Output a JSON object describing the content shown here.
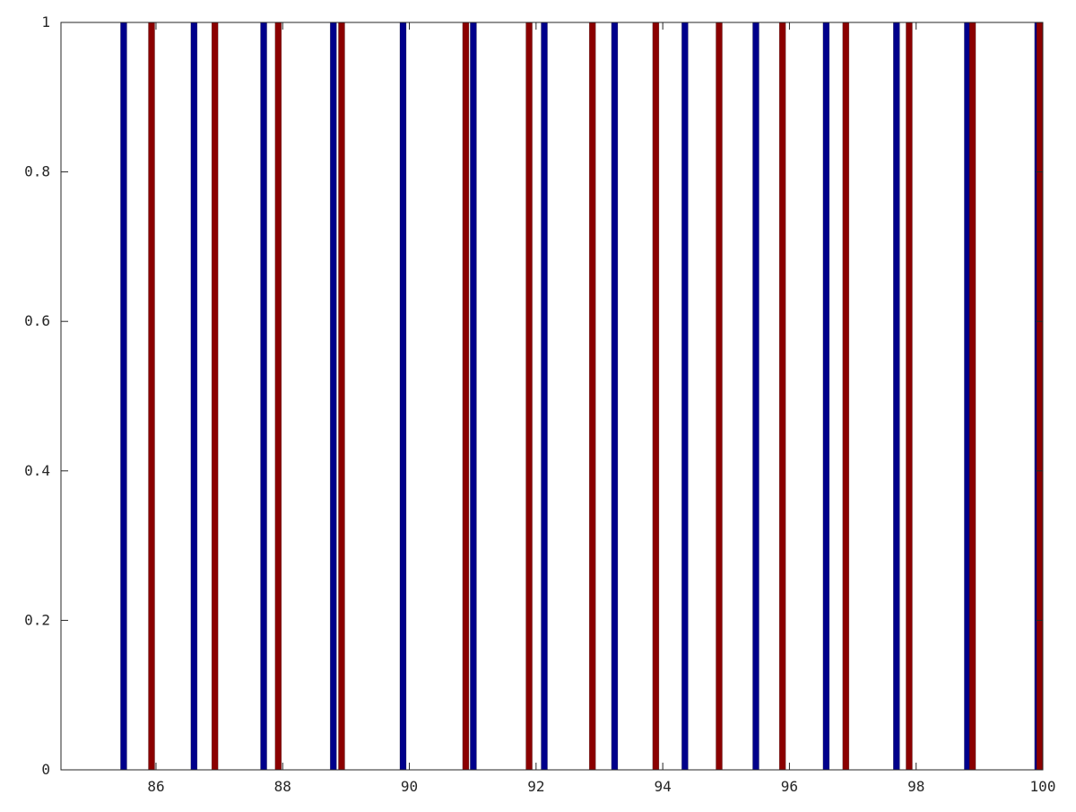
{
  "chart_data": {
    "type": "bar",
    "title": "",
    "xlabel": "",
    "ylabel": "",
    "xlim": [
      84.5,
      100
    ],
    "ylim": [
      0,
      1
    ],
    "x_ticks": [
      86,
      88,
      90,
      92,
      94,
      96,
      98,
      100
    ],
    "x_tick_labels": [
      "86",
      "88",
      "90",
      "92",
      "94",
      "96",
      "98",
      "100"
    ],
    "y_ticks": [
      0,
      0.2,
      0.4,
      0.6,
      0.8,
      1
    ],
    "y_tick_labels": [
      "0",
      "0.2",
      "0.4",
      "0.6",
      "0.8",
      "1"
    ],
    "grid": false,
    "series": [
      {
        "color": "#00008b",
        "x": [
          85.49,
          86.6,
          87.7,
          88.8,
          89.9,
          91.01,
          92.13,
          93.24,
          94.35,
          95.47,
          96.58,
          97.69,
          98.81,
          99.92
        ],
        "values": [
          1,
          1,
          1,
          1,
          1,
          1,
          1,
          1,
          1,
          1,
          1,
          1,
          1,
          1
        ]
      },
      {
        "color": "#8b0000",
        "x": [
          85.93,
          86.93,
          87.93,
          88.93,
          90.89,
          91.89,
          92.89,
          93.89,
          94.89,
          95.89,
          96.89,
          97.89,
          98.89,
          99.97
        ],
        "values": [
          1,
          1,
          1,
          1,
          1,
          1,
          1,
          1,
          1,
          1,
          1,
          1,
          1,
          1
        ]
      }
    ]
  }
}
